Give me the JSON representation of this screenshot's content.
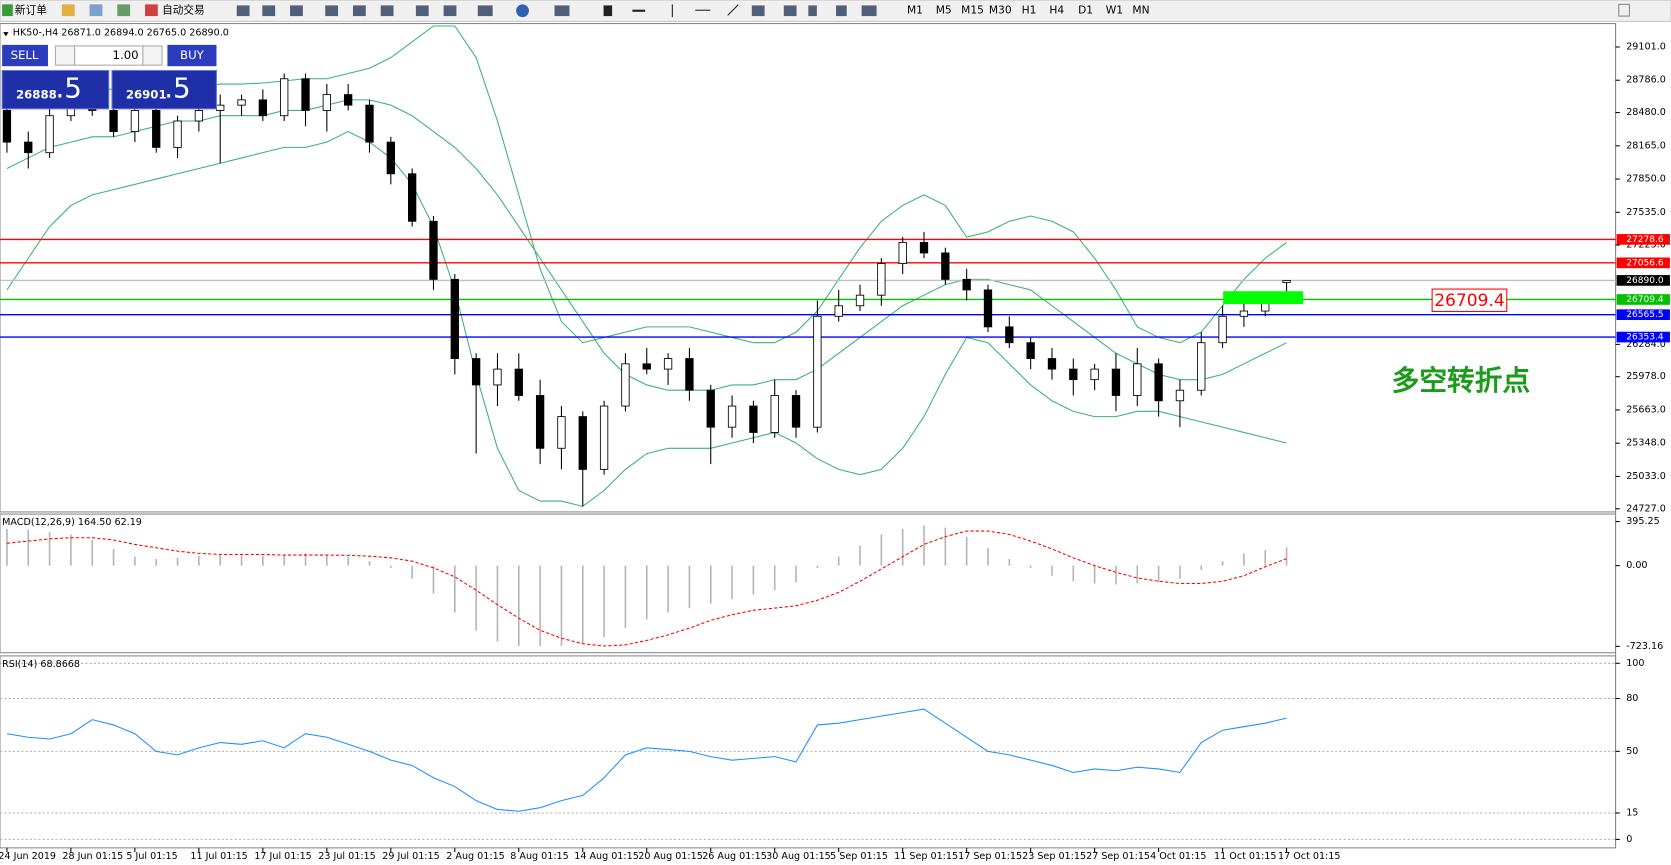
{
  "toolbar": {
    "new_order": "新订单",
    "auto_trading": "自动交易",
    "timeframes": [
      "M1",
      "M5",
      "M15",
      "M30",
      "H1",
      "H4",
      "D1",
      "W1",
      "MN"
    ]
  },
  "trade_panel": {
    "sell": "SELL",
    "lot": "1.00",
    "buy": "BUY",
    "bid_main": "26888",
    "bid_pips": ".5",
    "ask_main": "26901",
    "ask_pips": ".5"
  },
  "chart_data": [
    {
      "type": "candlestick",
      "title": "HK50-,H4  26871.0 26894.0 26765.0 26890.0",
      "categories": [
        "24 Jun 2019",
        null,
        null,
        "28 Jun 01:15",
        null,
        null,
        "5 Jul 01:15",
        null,
        null,
        "11 Jul 01:15",
        null,
        null,
        "17 Jul 01:15",
        null,
        null,
        "23 Jul 01:15",
        null,
        null,
        "29 Jul 01:15",
        null,
        null,
        "2 Aug 01:15",
        null,
        null,
        "8 Aug 01:15",
        null,
        null,
        "14 Aug 01:15",
        null,
        null,
        "20 Aug 01:15",
        null,
        null,
        "26 Aug 01:15",
        null,
        null,
        "30 Aug 01:15",
        null,
        null,
        "5 Sep 01:15",
        null,
        null,
        "11 Sep 01:15",
        null,
        null,
        "17 Sep 01:15",
        null,
        null,
        "23 Sep 01:15",
        null,
        null,
        "27 Sep 01:15",
        null,
        null,
        "4 Oct 01:15",
        null,
        null,
        "11 Oct 01:15",
        null,
        null,
        "17 Oct 01:15"
      ],
      "ohlc": [
        [
          28500,
          28650,
          28100,
          28200
        ],
        [
          28200,
          28300,
          27950,
          28100
        ],
        [
          28100,
          28550,
          28050,
          28450
        ],
        [
          28450,
          28650,
          28400,
          28600
        ],
        [
          28600,
          28700,
          28450,
          28500
        ],
        [
          28500,
          28600,
          28250,
          28300
        ],
        [
          28300,
          28550,
          28200,
          28500
        ],
        [
          28500,
          28600,
          28100,
          28150
        ],
        [
          28150,
          28450,
          28050,
          28400
        ],
        [
          28400,
          28550,
          28300,
          28500
        ],
        [
          28500,
          28650,
          28000,
          28550
        ],
        [
          28550,
          28650,
          28450,
          28600
        ],
        [
          28600,
          28700,
          28400,
          28450
        ],
        [
          28450,
          28850,
          28400,
          28800
        ],
        [
          28800,
          28850,
          28350,
          28500
        ],
        [
          28500,
          28750,
          28300,
          28650
        ],
        [
          28650,
          28750,
          28500,
          28550
        ],
        [
          28550,
          28600,
          28100,
          28200
        ],
        [
          28200,
          28250,
          27800,
          27900
        ],
        [
          27900,
          27950,
          27400,
          27450
        ],
        [
          27450,
          27500,
          26800,
          26900
        ],
        [
          26900,
          26950,
          26000,
          26150
        ],
        [
          26150,
          26200,
          25250,
          25900
        ],
        [
          25900,
          26200,
          25700,
          26050
        ],
        [
          26050,
          26200,
          25750,
          25800
        ],
        [
          25800,
          25950,
          25150,
          25300
        ],
        [
          25300,
          25700,
          25100,
          25600
        ],
        [
          25600,
          25650,
          24750,
          25100
        ],
        [
          25100,
          25750,
          25050,
          25700
        ],
        [
          25700,
          26200,
          25650,
          26100
        ],
        [
          26100,
          26250,
          26000,
          26050
        ],
        [
          26050,
          26200,
          25900,
          26150
        ],
        [
          26150,
          26250,
          25750,
          25850
        ],
        [
          25850,
          25900,
          25150,
          25500
        ],
        [
          25500,
          25800,
          25400,
          25700
        ],
        [
          25700,
          25750,
          25350,
          25450
        ],
        [
          25450,
          25950,
          25400,
          25800
        ],
        [
          25800,
          25850,
          25400,
          25500
        ],
        [
          25500,
          26700,
          25450,
          26550
        ],
        [
          26550,
          26800,
          26500,
          26650
        ],
        [
          26650,
          26850,
          26600,
          26750
        ],
        [
          26750,
          27100,
          26650,
          27050
        ],
        [
          27050,
          27300,
          26950,
          27250
        ],
        [
          27250,
          27350,
          27100,
          27150
        ],
        [
          27150,
          27200,
          26850,
          26900
        ],
        [
          26900,
          27000,
          26700,
          26800
        ],
        [
          26800,
          26850,
          26400,
          26450
        ],
        [
          26450,
          26550,
          26250,
          26300
        ],
        [
          26300,
          26350,
          26050,
          26150
        ],
        [
          26150,
          26250,
          25950,
          26050
        ],
        [
          26050,
          26150,
          25800,
          25950
        ],
        [
          25950,
          26100,
          25850,
          26050
        ],
        [
          26050,
          26200,
          25650,
          25800
        ],
        [
          25800,
          26250,
          25700,
          26100
        ],
        [
          26100,
          26150,
          25600,
          25750
        ],
        [
          25750,
          25950,
          25500,
          25850
        ],
        [
          25850,
          26400,
          25800,
          26300
        ],
        [
          26300,
          26650,
          26250,
          26550
        ],
        [
          26550,
          26700,
          26450,
          26600
        ],
        [
          26600,
          26750,
          26550,
          26700
        ],
        [
          26871,
          26894,
          26765,
          26890
        ]
      ],
      "series": [
        {
          "color": "#3cb371",
          "values": [
            28550,
            28600,
            28650,
            28700,
            28700,
            28700,
            28700,
            28720,
            28720,
            28720,
            28750,
            28750,
            28760,
            28780,
            28800,
            28800,
            28850,
            28900,
            29000,
            29150,
            29300,
            29300,
            29000,
            28400,
            27700,
            27000,
            26500,
            26300,
            26350,
            26400,
            26450,
            26450,
            26450,
            26400,
            26350,
            26300,
            26300,
            26400,
            26600,
            26900,
            27200,
            27450,
            27600,
            27700,
            27600,
            27300,
            27350,
            27450,
            27500,
            27450,
            27350,
            27100,
            26800,
            26450,
            26350,
            26300,
            26400,
            26650,
            26900,
            27100,
            27250
          ]
        },
        {
          "color": "#3cb371",
          "values": [
            27950,
            28050,
            28150,
            28200,
            28250,
            28250,
            28300,
            28350,
            28400,
            28400,
            28450,
            28450,
            28450,
            28500,
            28500,
            28550,
            28600,
            28600,
            28550,
            28450,
            28300,
            28150,
            27950,
            27700,
            27400,
            27100,
            26800,
            26500,
            26200,
            26000,
            25900,
            25850,
            25850,
            25850,
            25900,
            25900,
            25950,
            25950,
            26050,
            26200,
            26350,
            26500,
            26650,
            26750,
            26850,
            26900,
            26900,
            26850,
            26800,
            26650,
            26500,
            26350,
            26200,
            26100,
            26000,
            25950,
            25950,
            26000,
            26100,
            26200,
            26300
          ]
        },
        {
          "color": "#3cb371",
          "values": [
            26800,
            27100,
            27400,
            27600,
            27700,
            27750,
            27800,
            27850,
            27900,
            27950,
            28000,
            28050,
            28100,
            28150,
            28150,
            28200,
            28300,
            28200,
            28050,
            27800,
            27400,
            26800,
            26000,
            25300,
            24900,
            24800,
            24800,
            24750,
            24900,
            25100,
            25250,
            25300,
            25300,
            25300,
            25350,
            25400,
            25450,
            25350,
            25200,
            25100,
            25050,
            25100,
            25300,
            25600,
            26000,
            26350,
            26300,
            26100,
            25900,
            25750,
            25650,
            25600,
            25600,
            25650,
            25650,
            25600,
            25550,
            25500,
            25450,
            25400,
            25350
          ]
        }
      ],
      "ylim": [
        24697,
        29323
      ],
      "yticks": [
        {
          "value": 29101,
          "label": "29101.0"
        },
        {
          "value": 28786,
          "label": "28786.0"
        },
        {
          "value": 28480,
          "label": "28480.0"
        },
        {
          "value": 28165,
          "label": "28165.0"
        },
        {
          "value": 27850,
          "label": "27850.0"
        },
        {
          "value": 27535,
          "label": "27535.0"
        },
        {
          "value": 27225,
          "label": "27225.0"
        },
        {
          "value": 26284,
          "label": "26284.0"
        },
        {
          "value": 25978,
          "label": "25978.0"
        },
        {
          "value": 25663,
          "label": "25663.0"
        },
        {
          "value": 25348,
          "label": "25348.0"
        },
        {
          "value": 25033,
          "label": "25033.0"
        },
        {
          "value": 24727,
          "label": "24727.0"
        }
      ],
      "levels": [
        {
          "value": 27278.6,
          "color": "#ff0000",
          "tag_color": "#ff0000"
        },
        {
          "value": 27056.6,
          "color": "#ff0000",
          "tag_color": "#ff0000"
        },
        {
          "value": 26890,
          "label": "26890.0",
          "color": "#c0c0c0",
          "tag_color": "#000000"
        },
        {
          "value": 26709.4,
          "color": "#00c000",
          "tag_color": "#00c000"
        },
        {
          "value": 26565.5,
          "color": "#0000ff",
          "tag_color": "#0000ff"
        },
        {
          "value": 26353.4,
          "color": "#0000ff",
          "tag_color": "#0000ff"
        }
      ],
      "annotations": {
        "price_tag": "26709.4",
        "note": "多空转折点"
      }
    },
    {
      "type": "macd",
      "title": "MACD(12,26,9) 164.50 62.19",
      "histogram": {
        "color": "#b4b4b4",
        "values": [
          330,
          320,
          300,
          280,
          230,
          150,
          80,
          60,
          70,
          90,
          100,
          90,
          90,
          100,
          110,
          100,
          80,
          40,
          -20,
          -120,
          -250,
          -420,
          -580,
          -680,
          -720,
          -720,
          -720,
          -700,
          -640,
          -560,
          -480,
          -420,
          -380,
          -340,
          -300,
          -260,
          -220,
          -150,
          -20,
          80,
          180,
          280,
          330,
          360,
          340,
          260,
          160,
          60,
          -20,
          -90,
          -140,
          -160,
          -170,
          -160,
          -150,
          -120,
          -40,
          40,
          110,
          140,
          164.5
        ]
      },
      "signal": {
        "color": "#ff0000",
        "values": [
          200,
          220,
          240,
          250,
          250,
          230,
          190,
          160,
          130,
          110,
          100,
          100,
          100,
          95,
          95,
          95,
          92,
          85,
          70,
          40,
          -20,
          -100,
          -220,
          -350,
          -470,
          -580,
          -650,
          -700,
          -720,
          -710,
          -670,
          -620,
          -560,
          -490,
          -440,
          -400,
          -380,
          -360,
          -310,
          -240,
          -140,
          -30,
          80,
          190,
          260,
          310,
          310,
          280,
          220,
          150,
          70,
          0,
          -60,
          -110,
          -140,
          -160,
          -160,
          -140,
          -90,
          -10,
          62.19
        ]
      },
      "ylim": [
        -780,
        462
      ],
      "yticks": [
        395.25,
        {
          "value": 0,
          "label": "0.00"
        },
        -723.16
      ]
    },
    {
      "type": "line",
      "title": "RSI(14) 68.8668",
      "series": [
        {
          "color": "#1e90ff",
          "values": [
            60,
            58,
            57,
            60,
            68,
            65,
            60,
            50,
            48,
            52,
            55,
            54,
            56,
            52,
            60,
            58,
            54,
            50,
            45,
            42,
            35,
            30,
            22,
            17,
            16,
            18,
            22,
            25,
            35,
            48,
            52,
            51,
            50,
            47,
            45,
            46,
            47,
            44,
            65,
            66,
            68,
            70,
            72,
            74,
            66,
            58,
            50,
            48,
            45,
            42,
            38,
            40,
            39,
            41,
            40,
            38,
            55,
            62,
            64,
            66,
            68.8668
          ]
        }
      ],
      "ylim": [
        -4.8,
        104.2
      ],
      "yticks": [
        100,
        80,
        50,
        15,
        0
      ],
      "grid": "dashed"
    }
  ]
}
